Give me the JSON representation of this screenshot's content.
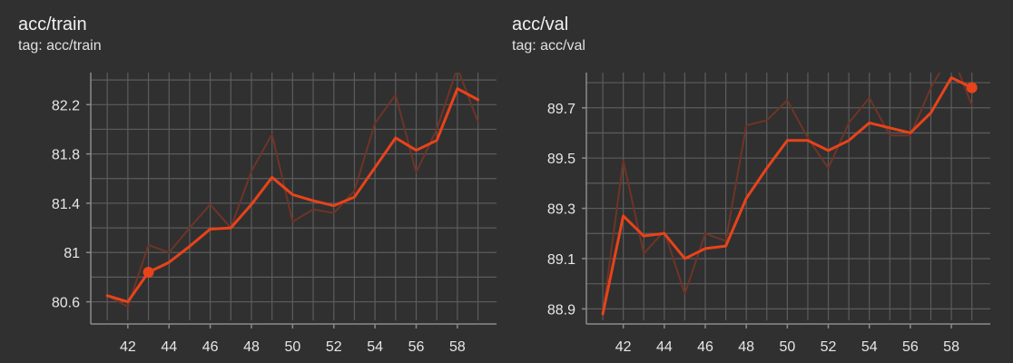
{
  "chart_data": [
    {
      "type": "line",
      "title": "acc/train",
      "subtitle": "tag: acc/train",
      "x": [
        41,
        42,
        43,
        44,
        45,
        46,
        47,
        48,
        49,
        50,
        51,
        52,
        53,
        54,
        55,
        56,
        57,
        58,
        59
      ],
      "series": [
        {
          "role": "raw",
          "values": [
            80.65,
            80.56,
            81.06,
            81.0,
            81.2,
            81.39,
            81.2,
            81.66,
            81.96,
            81.25,
            81.35,
            81.32,
            81.5,
            82.05,
            82.28,
            81.65,
            82.0,
            82.5,
            82.06
          ]
        },
        {
          "role": "smoothed",
          "values": [
            80.65,
            80.6,
            80.84,
            80.92,
            81.05,
            81.19,
            81.2,
            81.39,
            81.61,
            81.47,
            81.42,
            81.38,
            81.45,
            81.69,
            81.93,
            81.83,
            81.91,
            82.33,
            82.24
          ]
        }
      ],
      "highlight_point": {
        "x": 43,
        "y": 80.84
      },
      "xticks": [
        42,
        44,
        46,
        48,
        50,
        52,
        54,
        56,
        58
      ],
      "yticks": [
        "80.6",
        "81",
        "81.4",
        "81.8",
        "82.2"
      ],
      "xlim": [
        40.2,
        59.9
      ],
      "ylim": [
        80.42,
        82.46
      ],
      "grid": true,
      "colors": {
        "smoothed": "#e8431a",
        "raw": "#6e3427",
        "grid": "#5c5c5c"
      }
    },
    {
      "type": "line",
      "title": "acc/val",
      "subtitle": "tag: acc/val",
      "x": [
        41,
        42,
        43,
        44,
        45,
        46,
        47,
        48,
        49,
        50,
        51,
        52,
        53,
        54,
        55,
        56,
        57,
        58,
        59
      ],
      "series": [
        {
          "role": "raw",
          "values": [
            88.88,
            89.49,
            89.12,
            89.21,
            88.96,
            89.2,
            89.17,
            89.63,
            89.65,
            89.73,
            89.58,
            89.46,
            89.64,
            89.74,
            89.59,
            89.59,
            89.78,
            89.92,
            89.71
          ]
        },
        {
          "role": "smoothed",
          "values": [
            88.88,
            89.27,
            89.19,
            89.2,
            89.1,
            89.14,
            89.15,
            89.34,
            89.46,
            89.57,
            89.57,
            89.53,
            89.57,
            89.64,
            89.62,
            89.6,
            89.68,
            89.82,
            89.78
          ]
        }
      ],
      "highlight_point": {
        "x": 59,
        "y": 89.78
      },
      "xticks": [
        42,
        44,
        46,
        48,
        50,
        52,
        54,
        56,
        58
      ],
      "yticks": [
        "88.9",
        "89.1",
        "89.3",
        "89.5",
        "89.7"
      ],
      "xlim": [
        40.2,
        59.9
      ],
      "ylim": [
        88.84,
        89.84
      ],
      "grid": true,
      "colors": {
        "smoothed": "#e8431a",
        "raw": "#6e3427",
        "grid": "#5c5c5c"
      }
    }
  ]
}
